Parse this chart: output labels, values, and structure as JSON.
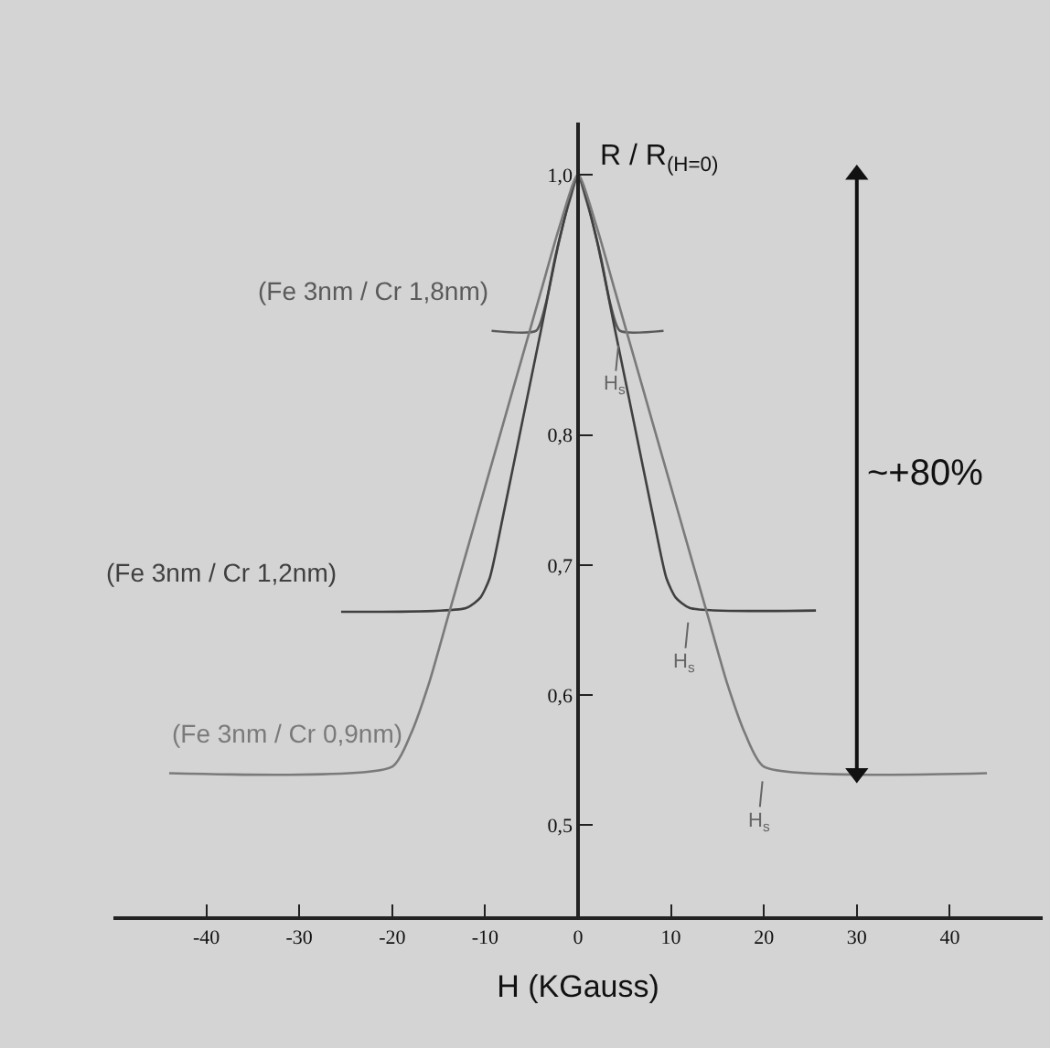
{
  "chart_data": {
    "type": "line",
    "xlabel": "H (KGauss)",
    "ylabel": "R / R$_{(H=0)}$",
    "series": [
      {
        "name": "(Fe 3nm / Cr 1,8nm)",
        "color": "#5a5a5a",
        "x": [
          -9.3,
          -4.5,
          -3.5,
          -2.5,
          -1.5,
          -0.7,
          0,
          0.7,
          1.5,
          2.5,
          3.5,
          4.5,
          9.2
        ],
        "values": [
          0.88,
          0.88,
          0.9,
          0.935,
          0.965,
          0.985,
          1.0,
          0.985,
          0.965,
          0.935,
          0.9,
          0.88,
          0.88
        ]
      },
      {
        "name": "(Fe 3nm / Cr 1,2nm)",
        "color": "#404040",
        "x": [
          -25.5,
          -12,
          -10.5,
          -9.5,
          -8,
          -6,
          -4,
          -2,
          0,
          2,
          4,
          6,
          8,
          9.5,
          10.5,
          12,
          25.6
        ],
        "values": [
          0.664,
          0.667,
          0.675,
          0.69,
          0.74,
          0.81,
          0.88,
          0.95,
          1.0,
          0.95,
          0.88,
          0.81,
          0.74,
          0.69,
          0.675,
          0.667,
          0.665
        ]
      },
      {
        "name": "(Fe 3nm / Cr 0,9nm)",
        "color": "#7a7a7a",
        "x": [
          -44,
          -20,
          -18,
          -16,
          -14,
          -12,
          -10,
          -8,
          -6,
          -4,
          -2,
          0,
          2,
          4,
          6,
          8,
          10,
          12,
          14,
          16,
          18,
          20,
          44
        ],
        "values": [
          0.54,
          0.545,
          0.57,
          0.61,
          0.66,
          0.71,
          0.76,
          0.81,
          0.86,
          0.91,
          0.96,
          1.0,
          0.96,
          0.91,
          0.86,
          0.81,
          0.76,
          0.71,
          0.66,
          0.61,
          0.57,
          0.545,
          0.54
        ]
      },
      {
        "type": "scatter",
        "color": "#111111",
        "x": [
          30,
          30
        ],
        "values": [
          0.54,
          1.0
        ],
        "marker": "triangle"
      }
    ],
    "annotations": [
      {
        "text": "H$_{s}$",
        "x": 4.5,
        "y": 0.88
      },
      {
        "text": "H$_{s}$",
        "x": 12,
        "y": 0.667
      },
      {
        "text": "H$_{s}$",
        "x": 20,
        "y": 0.545
      },
      "~+80%"
    ],
    "xlim": [
      -50,
      50
    ],
    "ylim": [
      0.43,
      1.04
    ],
    "xticks": [
      -40,
      -30,
      -20,
      -10,
      0,
      10,
      20,
      30,
      40
    ],
    "yticks": [
      {
        "value": 0.5,
        "label": "0,5"
      },
      {
        "value": 0.6,
        "label": "0,6"
      },
      {
        "value": 0.7,
        "label": "0,7"
      },
      {
        "value": 0.8,
        "label": "0,8"
      },
      {
        "value": 1.0,
        "label": "1,0"
      }
    ],
    "legend": false,
    "marker": "none",
    "line_style": "solid"
  }
}
